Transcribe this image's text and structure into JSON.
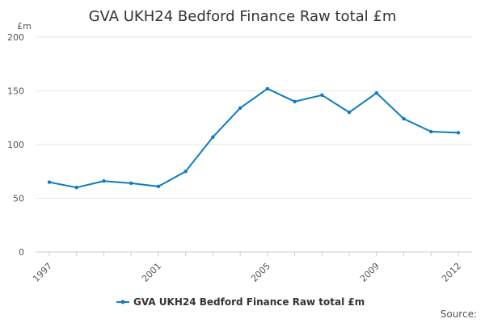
{
  "chart_data": {
    "type": "line",
    "title": "GVA UKH24 Bedford Finance Raw total £m",
    "unit_label": "£m",
    "xlabel": "",
    "ylabel": "",
    "ylim": [
      0,
      200
    ],
    "y_ticks": [
      0,
      50,
      100,
      150,
      200
    ],
    "x_tick_labels": [
      "1997",
      "2001",
      "2005",
      "2009",
      "2012"
    ],
    "x": [
      1997,
      1998,
      1999,
      2000,
      2001,
      2002,
      2003,
      2004,
      2005,
      2006,
      2007,
      2008,
      2009,
      2010,
      2011,
      2012
    ],
    "series": [
      {
        "name": "GVA UKH24 Bedford Finance Raw total £m",
        "values": [
          65,
          60,
          66,
          64,
          61,
          75,
          107,
          134,
          152,
          140,
          146,
          130,
          148,
          124,
          112,
          111
        ]
      }
    ],
    "grid": true,
    "legend": "bottom-center",
    "source_label": "Source:",
    "colors": {
      "line": "#0e7bbf",
      "grid": "#e6e6e6",
      "axis": "#cccccc"
    }
  }
}
